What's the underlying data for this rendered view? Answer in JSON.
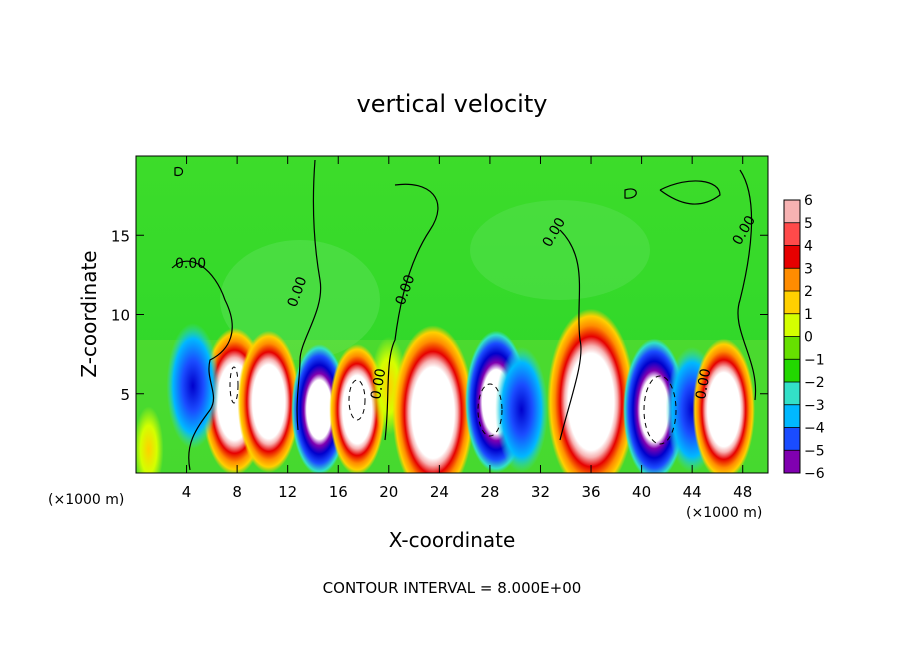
{
  "chart_data": {
    "type": "heatmap",
    "title": "vertical velocity",
    "xlabel": "X-coordinate",
    "ylabel": "Z-coordinate",
    "x_unit_label": "(×1000 m)",
    "x_ticks": [
      4,
      8,
      12,
      16,
      20,
      24,
      28,
      32,
      36,
      40,
      44,
      48
    ],
    "xlim": [
      0,
      50
    ],
    "y_ticks": [
      5,
      10,
      15
    ],
    "ylim": [
      0,
      20
    ],
    "colorbar": {
      "ticks": [
        6,
        5,
        4,
        3,
        2,
        1,
        0,
        -1,
        -2,
        -3,
        -4,
        -5,
        -6
      ],
      "tick_labels": [
        "6",
        "5",
        "4",
        "3",
        "2",
        "1",
        "0",
        "−1",
        "−2",
        "−3",
        "−4",
        "−5",
        "−6"
      ],
      "colors": [
        "#f7b2b2",
        "#ff4a4a",
        "#e60000",
        "#ff8c00",
        "#ffd000",
        "#d4ff00",
        "#66e000",
        "#22d800",
        "#33e0c8",
        "#00b8ff",
        "#1a4cff",
        "#0000cc",
        "#8000b0"
      ]
    },
    "contour_label": "0.00",
    "footer": "CONTOUR INTERVAL = 8.000E+00",
    "cells": [
      {
        "x": 1.0,
        "z": 1.5,
        "w": 0.9
      },
      {
        "x": 7.8,
        "z": 4.5,
        "w": 6.5
      },
      {
        "x": 10.5,
        "z": 4.5,
        "w": 6.0
      },
      {
        "x": 14.5,
        "z": 4.0,
        "w": -5.0
      },
      {
        "x": 17.5,
        "z": 4.0,
        "w": 5.0
      },
      {
        "x": 20.0,
        "z": 5.5,
        "w": 2.0
      },
      {
        "x": 23.5,
        "z": 3.8,
        "w": 9.0
      },
      {
        "x": 28.5,
        "z": 4.5,
        "w": -6.0
      },
      {
        "x": 30.5,
        "z": 4.0,
        "w": -4.5
      },
      {
        "x": 36.0,
        "z": 4.5,
        "w": 10.0
      },
      {
        "x": 41.0,
        "z": 4.0,
        "w": -6.0
      },
      {
        "x": 44.0,
        "z": 4.0,
        "w": -4.5
      },
      {
        "x": 46.5,
        "z": 4.0,
        "w": 6.0
      },
      {
        "x": 4.5,
        "z": 5.5,
        "w": -4.5
      }
    ]
  }
}
